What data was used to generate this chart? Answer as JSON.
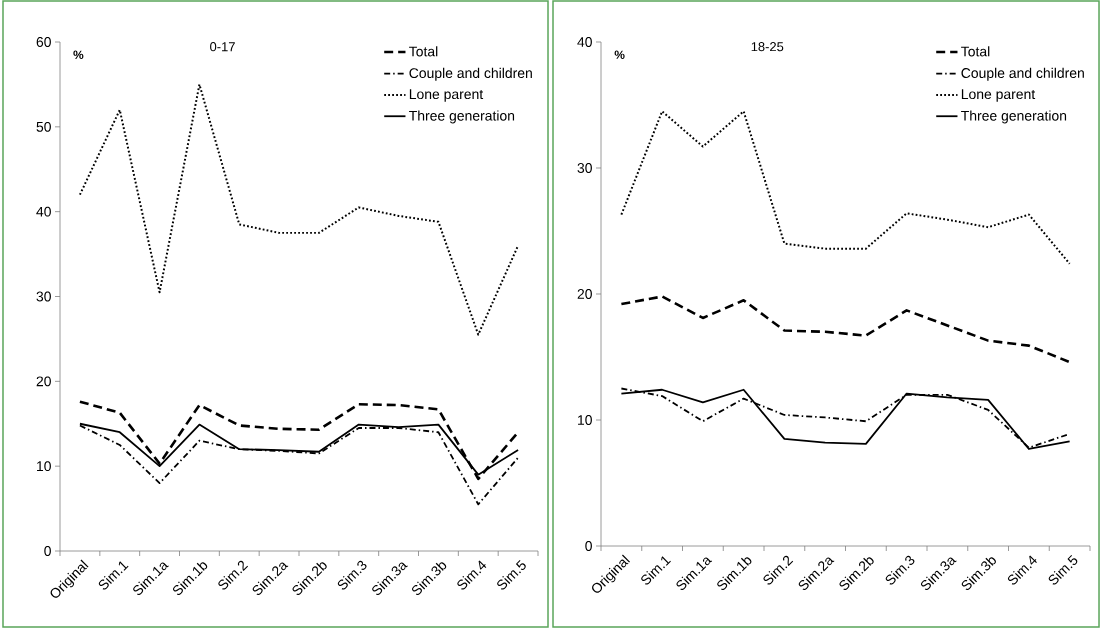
{
  "chart_data": [
    {
      "type": "line",
      "title": "0-17",
      "ylabel": "%",
      "categories": [
        "Original",
        "Sim.1",
        "Sim.1a",
        "Sim.1b",
        "Sim.2",
        "Sim.2a",
        "Sim.2b",
        "Sim.3",
        "Sim.3a",
        "Sim.3b",
        "Sim.4",
        "Sim.5"
      ],
      "series": [
        {
          "name": "Total",
          "color": "#000000",
          "line_style": "dashed",
          "values": [
            17.6,
            16.3,
            10.3,
            17.2,
            14.8,
            14.4,
            14.3,
            17.3,
            17.2,
            16.7,
            8.5,
            14.0
          ]
        },
        {
          "name": "Couple and children",
          "color": "#000000",
          "line_style": "dashdot",
          "values": [
            14.8,
            12.5,
            8.0,
            13.0,
            12.0,
            11.8,
            11.5,
            14.5,
            14.5,
            14.0,
            5.5,
            11.0
          ]
        },
        {
          "name": "Lone parent",
          "color": "#000000",
          "line_style": "dotted",
          "values": [
            42.0,
            52.0,
            30.5,
            55.0,
            38.5,
            37.5,
            37.5,
            40.5,
            39.5,
            38.8,
            25.5,
            36.0
          ]
        },
        {
          "name": "Three generation",
          "color": "#000000",
          "line_style": "solid",
          "values": [
            15.0,
            14.0,
            10.0,
            14.9,
            12.0,
            11.9,
            11.7,
            14.9,
            14.6,
            14.9,
            9.0,
            11.9
          ]
        }
      ],
      "ylim": [
        0,
        60
      ],
      "yticks": [
        0,
        10,
        20,
        30,
        40,
        50,
        60
      ],
      "grid": false,
      "legend": "top right",
      "marker": "none"
    },
    {
      "type": "line",
      "title": "18-25",
      "ylabel": "%",
      "categories": [
        "Original",
        "Sim.1",
        "Sim.1a",
        "Sim.1b",
        "Sim.2",
        "Sim.2a",
        "Sim.2b",
        "Sim.3",
        "Sim.3a",
        "Sim.3b",
        "Sim.4",
        "Sim.5"
      ],
      "series": [
        {
          "name": "Total",
          "color": "#000000",
          "line_style": "dashed",
          "values": [
            19.2,
            19.8,
            18.1,
            19.5,
            17.1,
            17.0,
            16.7,
            18.7,
            17.5,
            16.3,
            15.9,
            14.6
          ]
        },
        {
          "name": "Couple and children",
          "color": "#000000",
          "line_style": "dashdot",
          "values": [
            12.5,
            11.9,
            9.9,
            11.7,
            10.4,
            10.2,
            9.9,
            12.0,
            12.0,
            10.8,
            7.8,
            8.9
          ]
        },
        {
          "name": "Lone parent",
          "color": "#000000",
          "line_style": "dotted",
          "values": [
            26.3,
            34.5,
            31.7,
            34.5,
            24.0,
            23.6,
            23.6,
            26.4,
            25.9,
            25.3,
            26.3,
            22.4
          ]
        },
        {
          "name": "Three generation",
          "color": "#000000",
          "line_style": "solid",
          "values": [
            12.1,
            12.4,
            11.4,
            12.4,
            8.5,
            8.2,
            8.1,
            12.1,
            11.8,
            11.6,
            7.7,
            8.3
          ]
        }
      ],
      "ylim": [
        0,
        40
      ],
      "yticks": [
        0,
        10,
        20,
        30,
        40
      ],
      "grid": false,
      "legend": "top right",
      "marker": "none"
    }
  ]
}
